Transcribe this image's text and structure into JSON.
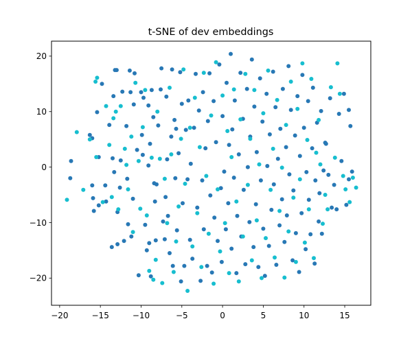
{
  "chart_data": {
    "type": "scatter",
    "title": "t-SNE of dev embeddings",
    "xlabel": "",
    "ylabel": "",
    "xlim": [
      -21.0,
      18.2
    ],
    "ylim": [
      -24.9,
      22.7
    ],
    "x_ticks": [
      -20,
      -15,
      -10,
      -5,
      0,
      5,
      10,
      15
    ],
    "y_ticks": [
      -20,
      -10,
      0,
      10,
      20
    ],
    "x_tick_labels": [
      "−20",
      "−15",
      "−10",
      "−5",
      "0",
      "5",
      "10",
      "15"
    ],
    "y_tick_labels": [
      "−20",
      "−10",
      "0",
      "10",
      "20"
    ],
    "grid": false,
    "legend": null,
    "series": [
      {
        "color": "#2878b5",
        "points": [
          [
            -18.6,
            1.1
          ],
          [
            -18.7,
            -2.0
          ],
          [
            -16.3,
            5.8
          ],
          [
            -16.0,
            5.2
          ],
          [
            -16.0,
            -3.3
          ],
          [
            -15.9,
            -5.6
          ],
          [
            -15.8,
            -7.9
          ],
          [
            -15.4,
            9.9
          ],
          [
            -15.2,
            1.8
          ],
          [
            -15.2,
            -6.9
          ],
          [
            -14.8,
            15.0
          ],
          [
            -14.4,
            -3.3
          ],
          [
            -14.3,
            -6.2
          ],
          [
            -13.9,
            7.6
          ],
          [
            -13.6,
            -14.4
          ],
          [
            -13.5,
            1.6
          ],
          [
            -13.4,
            12.8
          ],
          [
            -13.3,
            -0.9
          ],
          [
            -13.2,
            17.5
          ],
          [
            -13.0,
            17.5
          ],
          [
            -12.9,
            -13.9
          ],
          [
            -12.9,
            -8.1
          ],
          [
            -12.6,
            -3.7
          ],
          [
            -12.5,
            1.2
          ],
          [
            -12.3,
            13.6
          ],
          [
            -12.1,
            -13.3
          ],
          [
            -11.8,
            7.4
          ],
          [
            -11.7,
            -2.1
          ],
          [
            -11.6,
            -10.3
          ],
          [
            -11.4,
            17.4
          ],
          [
            -11.3,
            13.5
          ],
          [
            -11.2,
            -12.5
          ],
          [
            -11.0,
            -5.7
          ],
          [
            -10.9,
            11.3
          ],
          [
            -10.8,
            16.9
          ],
          [
            -10.5,
            3.1
          ],
          [
            -10.3,
            -19.5
          ],
          [
            -10.0,
            13.5
          ],
          [
            -9.9,
            5.8
          ],
          [
            -9.8,
            2.2
          ],
          [
            -9.7,
            12.5
          ],
          [
            -9.5,
            -10.4
          ],
          [
            -9.3,
            -15.0
          ],
          [
            -9.1,
            11.1
          ],
          [
            -9.1,
            0.3
          ],
          [
            -9.0,
            -13.7
          ],
          [
            -8.9,
            4.2
          ],
          [
            -8.8,
            -19.7
          ],
          [
            -8.7,
            13.9
          ],
          [
            -8.5,
            9.0
          ],
          [
            -8.4,
            -2.9
          ],
          [
            -8.3,
            -6.2
          ],
          [
            -8.2,
            -13.2
          ],
          [
            -8.1,
            -3.1
          ],
          [
            -7.9,
            7.5
          ],
          [
            -7.6,
            14.0
          ],
          [
            -7.5,
            17.8
          ],
          [
            -7.3,
            -9.8
          ],
          [
            -7.1,
            -13.0
          ],
          [
            -7.0,
            -5.4
          ],
          [
            -6.9,
            12.7
          ],
          [
            -6.8,
            1.4
          ],
          [
            -6.7,
            -8.8
          ],
          [
            -6.5,
            -15.5
          ],
          [
            -6.3,
            5.5
          ],
          [
            -6.2,
            17.6
          ],
          [
            -6.1,
            -17.8
          ],
          [
            -5.9,
            8.5
          ],
          [
            -5.8,
            -2.0
          ],
          [
            -5.7,
            6.9
          ],
          [
            -5.6,
            -11.4
          ],
          [
            -5.4,
            2.5
          ],
          [
            -5.2,
            17.1
          ],
          [
            -5.1,
            -20.6
          ],
          [
            -5.0,
            11.4
          ],
          [
            -4.9,
            -6.5
          ],
          [
            -4.7,
            -17.8
          ],
          [
            -4.5,
            6.7
          ],
          [
            -4.3,
            -2.2
          ],
          [
            -4.2,
            12.0
          ],
          [
            -4.0,
            -13.1
          ],
          [
            -3.9,
            0.6
          ],
          [
            -3.7,
            -16.5
          ],
          [
            -3.5,
            7.1
          ],
          [
            -3.3,
            16.8
          ],
          [
            -3.1,
            -7.3
          ],
          [
            -2.9,
            10.2
          ],
          [
            -2.7,
            -20.5
          ],
          [
            -2.5,
            -2.4
          ],
          [
            -2.4,
            13.5
          ],
          [
            -2.3,
            -11.2
          ],
          [
            -2.1,
            3.4
          ],
          [
            -1.9,
            -17.8
          ],
          [
            -1.8,
            8.3
          ],
          [
            -1.6,
            16.9
          ],
          [
            -1.5,
            -5.1
          ],
          [
            -1.3,
            -19.0
          ],
          [
            -1.1,
            11.9
          ],
          [
            -1.0,
            -9.1
          ],
          [
            -0.8,
            4.5
          ],
          [
            -0.6,
            -13.3
          ],
          [
            -0.4,
            18.5
          ],
          [
            -0.2,
            -3.8
          ],
          [
            -0.1,
            -17.1
          ],
          [
            0.0,
            9.2
          ],
          [
            0.2,
            -0.8
          ],
          [
            0.4,
            -11.2
          ],
          [
            0.5,
            15.2
          ],
          [
            0.7,
            -6.5
          ],
          [
            0.8,
            4.0
          ],
          [
            1.0,
            20.4
          ],
          [
            1.1,
            -14.7
          ],
          [
            1.2,
            6.8
          ],
          [
            1.4,
            -1.9
          ],
          [
            1.5,
            12.0
          ],
          [
            1.7,
            -19.1
          ],
          [
            1.8,
            -8.8
          ],
          [
            2.0,
            2.3
          ],
          [
            2.2,
            17.0
          ],
          [
            2.3,
            -12.5
          ],
          [
            2.5,
            8.7
          ],
          [
            2.6,
            -4.1
          ],
          [
            2.8,
            -17.5
          ],
          [
            3.0,
            14.1
          ],
          [
            3.1,
            0.0
          ],
          [
            3.3,
            -9.9
          ],
          [
            3.4,
            5.5
          ],
          [
            3.6,
            19.4
          ],
          [
            3.8,
            -14.4
          ],
          [
            3.9,
            10.9
          ],
          [
            4.1,
            -6.7
          ],
          [
            4.2,
            2.7
          ],
          [
            4.4,
            -18.0
          ],
          [
            4.6,
            16.0
          ],
          [
            4.7,
            -2.4
          ],
          [
            4.9,
            8.2
          ],
          [
            5.0,
            -11.1
          ],
          [
            5.2,
            -19.6
          ],
          [
            5.4,
            13.2
          ],
          [
            5.5,
            0.2
          ],
          [
            5.7,
            -14.2
          ],
          [
            5.8,
            5.9
          ],
          [
            6.0,
            -7.7
          ],
          [
            6.2,
            17.2
          ],
          [
            6.3,
            -3.1
          ],
          [
            6.5,
            10.8
          ],
          [
            6.6,
            -17.6
          ],
          [
            6.8,
            1.5
          ],
          [
            7.0,
            -10.5
          ],
          [
            7.1,
            6.9
          ],
          [
            7.3,
            -5.8
          ],
          [
            7.4,
            14.1
          ],
          [
            7.6,
            -13.5
          ],
          [
            7.8,
            3.6
          ],
          [
            7.9,
            -8.7
          ],
          [
            8.1,
            18.2
          ],
          [
            8.2,
            -1.3
          ],
          [
            8.4,
            10.3
          ],
          [
            8.6,
            -16.8
          ],
          [
            8.7,
            -4.2
          ],
          [
            8.9,
            5.7
          ],
          [
            9.0,
            -11.9
          ],
          [
            9.2,
            12.8
          ],
          [
            9.4,
            -18.9
          ],
          [
            9.5,
            2.0
          ],
          [
            9.7,
            -8.3
          ],
          [
            9.8,
            16.6
          ],
          [
            10.0,
            7.1
          ],
          [
            10.2,
            -14.8
          ],
          [
            10.3,
            -0.9
          ],
          [
            10.5,
            11.9
          ],
          [
            10.6,
            -5.9
          ],
          [
            10.8,
            -12.1
          ],
          [
            11.0,
            3.4
          ],
          [
            11.1,
            14.3
          ],
          [
            11.3,
            -17.4
          ],
          [
            11.4,
            -2.4
          ],
          [
            11.6,
            8.0
          ],
          [
            11.8,
            -9.8
          ],
          [
            11.9,
            -4.7
          ],
          [
            12.1,
            10.1
          ],
          [
            12.2,
            -12.0
          ],
          [
            12.4,
            -0.6
          ],
          [
            12.6,
            4.4
          ],
          [
            12.7,
            4.2
          ],
          [
            13.0,
            -1.4
          ],
          [
            13.2,
            12.4
          ],
          [
            13.4,
            -7.3
          ],
          [
            13.7,
            -3.2
          ],
          [
            14.0,
            -7.6
          ],
          [
            14.3,
            9.6
          ],
          [
            14.6,
            1.1
          ],
          [
            14.9,
            13.2
          ],
          [
            15.2,
            -6.8
          ],
          [
            15.5,
            10.3
          ],
          [
            15.7,
            7.4
          ],
          [
            15.9,
            -0.8
          ],
          [
            15.5,
            -2.2
          ]
        ]
      },
      {
        "color": "#17becf",
        "points": [
          [
            -19.1,
            -5.9
          ],
          [
            -17.9,
            6.3
          ],
          [
            -17.1,
            -4.1
          ],
          [
            -16.3,
            5.0
          ],
          [
            -15.6,
            15.4
          ],
          [
            -15.4,
            16.1
          ],
          [
            -15.5,
            1.8
          ],
          [
            -14.7,
            -6.3
          ],
          [
            -14.3,
            11.0
          ],
          [
            -13.9,
            4.0
          ],
          [
            -13.6,
            -5.4
          ],
          [
            -13.4,
            8.8
          ],
          [
            -13.1,
            10.0
          ],
          [
            -12.8,
            -7.6
          ],
          [
            -12.5,
            11.0
          ],
          [
            -12.0,
            3.3
          ],
          [
            -11.8,
            0.4
          ],
          [
            -11.6,
            -4.0
          ],
          [
            -11.2,
            5.5
          ],
          [
            -11.0,
            -11.7
          ],
          [
            -10.7,
            15.2
          ],
          [
            -10.3,
            1.1
          ],
          [
            -10.1,
            -7.5
          ],
          [
            -9.8,
            7.2
          ],
          [
            -9.5,
            13.9
          ],
          [
            -9.3,
            -8.7
          ],
          [
            -9.0,
            -18.7
          ],
          [
            -8.7,
            1.7
          ],
          [
            -8.5,
            -20.3
          ],
          [
            -8.2,
            -16.7
          ],
          [
            -8.0,
            10.0
          ],
          [
            -7.7,
            1.5
          ],
          [
            -7.4,
            -20.9
          ],
          [
            -7.1,
            -2.1
          ],
          [
            -6.8,
            -10.1
          ],
          [
            -6.5,
            14.3
          ],
          [
            -6.3,
            2.3
          ],
          [
            -6.0,
            -18.9
          ],
          [
            -5.7,
            -13.4
          ],
          [
            -5.4,
            -7.1
          ],
          [
            -5.1,
            5.1
          ],
          [
            -4.8,
            17.6
          ],
          [
            -4.6,
            -3.0
          ],
          [
            -4.3,
            -22.3
          ],
          [
            -4.0,
            7.1
          ],
          [
            -3.7,
            -14.3
          ],
          [
            -3.4,
            12.5
          ],
          [
            -3.1,
            -8.3
          ],
          [
            -2.8,
            3.6
          ],
          [
            -2.6,
            -18.0
          ],
          [
            -2.3,
            17.0
          ],
          [
            -2.0,
            -1.6
          ],
          [
            -1.7,
            -12.0
          ],
          [
            -1.4,
            9.3
          ],
          [
            -1.1,
            -21.0
          ],
          [
            -0.8,
            18.9
          ],
          [
            -0.6,
            -4.0
          ],
          [
            -0.3,
            -15.2
          ],
          [
            0.0,
            12.9
          ],
          [
            0.3,
            -10.1
          ],
          [
            0.6,
            6.5
          ],
          [
            0.8,
            -19.1
          ],
          [
            1.1,
            1.8
          ],
          [
            1.4,
            14.0
          ],
          [
            1.7,
            -6.2
          ],
          [
            2.0,
            -20.6
          ],
          [
            2.2,
            8.6
          ],
          [
            2.5,
            -12.5
          ],
          [
            2.8,
            16.8
          ],
          [
            3.1,
            -3.2
          ],
          [
            3.4,
            5.1
          ],
          [
            3.6,
            -16.8
          ],
          [
            3.9,
            13.9
          ],
          [
            4.2,
            -9.6
          ],
          [
            4.5,
            0.5
          ],
          [
            4.8,
            -20.0
          ],
          [
            5.0,
            9.7
          ],
          [
            5.3,
            -12.8
          ],
          [
            5.6,
            17.4
          ],
          [
            5.9,
            -4.1
          ],
          [
            6.2,
            3.3
          ],
          [
            6.4,
            -16.3
          ],
          [
            6.7,
            12.1
          ],
          [
            7.0,
            -7.9
          ],
          [
            7.3,
            -0.1
          ],
          [
            7.6,
            -19.9
          ],
          [
            7.8,
            7.6
          ],
          [
            8.1,
            -11.6
          ],
          [
            8.4,
            15.4
          ],
          [
            8.7,
            -5.5
          ],
          [
            9.0,
            -17.1
          ],
          [
            9.2,
            10.5
          ],
          [
            9.5,
            -2.2
          ],
          [
            9.8,
            18.7
          ],
          [
            10.1,
            -13.6
          ],
          [
            10.4,
            4.9
          ],
          [
            10.6,
            -7.6
          ],
          [
            10.9,
            15.9
          ],
          [
            11.2,
            -16.4
          ],
          [
            11.5,
            2.6
          ],
          [
            11.8,
            8.5
          ],
          [
            12.0,
            0.5
          ],
          [
            12.3,
            -10.2
          ],
          [
            12.6,
            -5.0
          ],
          [
            12.9,
            -7.6
          ],
          [
            13.3,
            14.4
          ],
          [
            13.8,
            1.7
          ],
          [
            14.1,
            18.7
          ],
          [
            14.4,
            13.2
          ],
          [
            14.8,
            -1.6
          ],
          [
            15.1,
            -4.0
          ],
          [
            15.6,
            -6.3
          ],
          [
            16.0,
            -1.9
          ],
          [
            16.4,
            -3.7
          ]
        ]
      }
    ]
  }
}
